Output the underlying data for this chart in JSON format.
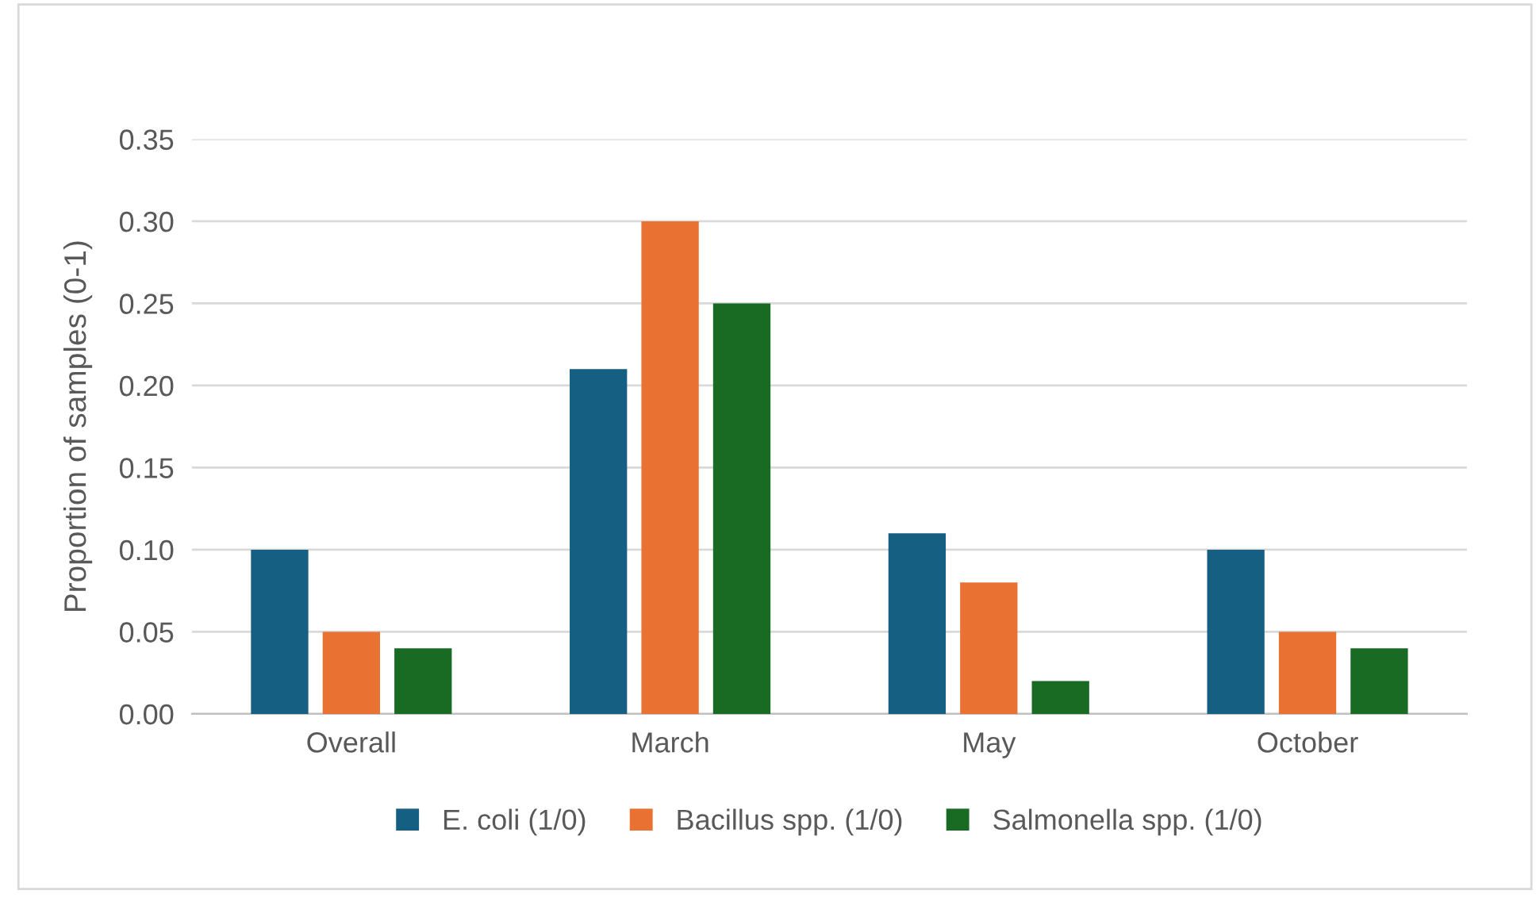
{
  "chart_data": {
    "type": "bar",
    "ylabel": "Proportion of samples (0-1)",
    "categories": [
      "Overall",
      "March",
      "May",
      "October"
    ],
    "series": [
      {
        "name": "E. coli (1/0)",
        "color": "#156082",
        "values": [
          0.1,
          0.21,
          0.11,
          0.1
        ]
      },
      {
        "name": "Bacillus spp. (1/0)",
        "color": "#e97132",
        "values": [
          0.05,
          0.3,
          0.08,
          0.05
        ]
      },
      {
        "name": "Salmonella spp. (1/0)",
        "color": "#196b24",
        "values": [
          0.04,
          0.25,
          0.02,
          0.04
        ]
      }
    ],
    "ylim": [
      0,
      0.35
    ],
    "yticks": [
      {
        "value": 0,
        "label": "0.00"
      },
      {
        "value": 0.05,
        "label": "0.05"
      },
      {
        "value": 0.1,
        "label": "0.10"
      },
      {
        "value": 0.15,
        "label": "0.15"
      },
      {
        "value": 0.2,
        "label": "0.20"
      },
      {
        "value": 0.25,
        "label": "0.25"
      },
      {
        "value": 0.3,
        "label": "0.30"
      },
      {
        "value": 0.35,
        "label": "0.35"
      }
    ],
    "grid": "y",
    "legend": "bottom"
  }
}
